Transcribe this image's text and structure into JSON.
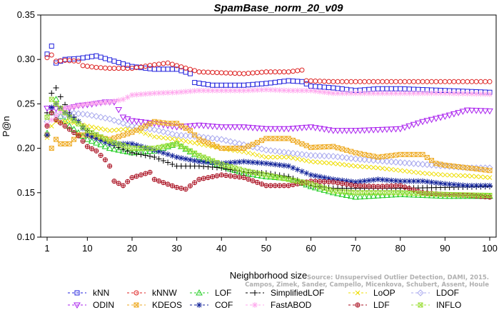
{
  "chart_data": {
    "type": "line",
    "title": "SpamBase_norm_20_v09",
    "xlabel": "Neighborhood size",
    "ylabel": "P@n",
    "xlim": [
      1,
      100
    ],
    "ylim": [
      0.1,
      0.35
    ],
    "xticks": [
      1,
      10,
      20,
      30,
      40,
      50,
      60,
      70,
      80,
      90,
      100
    ],
    "yticks": [
      "0.10",
      "0.15",
      "0.20",
      "0.25",
      "0.30",
      "0.35"
    ],
    "grid": false,
    "legend_position": "bottom",
    "credit": [
      "Source: Unsupervised Outlier Detection, DAMI, 2015.",
      "Campos, Zimek, Sander, Campello, Micenkova, Schubert, Assent, Houle"
    ],
    "series": [
      {
        "name": "kNN",
        "color": "#2222dd",
        "marker": "square",
        "points": [
          [
            1,
            0.306
          ],
          [
            2,
            0.315
          ],
          [
            3,
            0.296
          ],
          [
            5,
            0.3
          ],
          [
            8,
            0.301
          ],
          [
            12,
            0.304
          ],
          [
            16,
            0.298
          ],
          [
            20,
            0.292
          ],
          [
            25,
            0.289
          ],
          [
            30,
            0.289
          ],
          [
            33,
            0.284
          ],
          [
            34,
            0.274
          ],
          [
            38,
            0.271
          ],
          [
            45,
            0.271
          ],
          [
            50,
            0.273
          ],
          [
            55,
            0.276
          ],
          [
            58,
            0.275
          ],
          [
            60,
            0.27
          ],
          [
            65,
            0.268
          ],
          [
            70,
            0.265
          ],
          [
            75,
            0.267
          ],
          [
            80,
            0.267
          ],
          [
            85,
            0.266
          ],
          [
            90,
            0.265
          ],
          [
            95,
            0.264
          ],
          [
            100,
            0.263
          ]
        ]
      },
      {
        "name": "kNNW",
        "color": "#dd2222",
        "marker": "circle",
        "points": [
          [
            1,
            0.302
          ],
          [
            2,
            0.305
          ],
          [
            3,
            0.298
          ],
          [
            5,
            0.299
          ],
          [
            8,
            0.298
          ],
          [
            9,
            0.293
          ],
          [
            12,
            0.291
          ],
          [
            15,
            0.29
          ],
          [
            20,
            0.29
          ],
          [
            25,
            0.294
          ],
          [
            28,
            0.296
          ],
          [
            30,
            0.293
          ],
          [
            35,
            0.286
          ],
          [
            40,
            0.285
          ],
          [
            45,
            0.284
          ],
          [
            50,
            0.286
          ],
          [
            55,
            0.286
          ],
          [
            58,
            0.288
          ],
          [
            59,
            0.276
          ],
          [
            65,
            0.275
          ],
          [
            70,
            0.275
          ],
          [
            80,
            0.275
          ],
          [
            90,
            0.275
          ],
          [
            100,
            0.275
          ]
        ]
      },
      {
        "name": "LOF",
        "color": "#22cc22",
        "marker": "triangle",
        "points": [
          [
            1,
            0.217
          ],
          [
            2,
            0.24
          ],
          [
            3,
            0.255
          ],
          [
            4,
            0.236
          ],
          [
            6,
            0.225
          ],
          [
            10,
            0.21
          ],
          [
            15,
            0.2
          ],
          [
            20,
            0.195
          ],
          [
            25,
            0.197
          ],
          [
            30,
            0.205
          ],
          [
            35,
            0.19
          ],
          [
            40,
            0.18
          ],
          [
            45,
            0.172
          ],
          [
            50,
            0.168
          ],
          [
            55,
            0.166
          ],
          [
            60,
            0.157
          ],
          [
            65,
            0.15
          ],
          [
            70,
            0.145
          ],
          [
            80,
            0.148
          ],
          [
            90,
            0.146
          ],
          [
            100,
            0.146
          ]
        ]
      },
      {
        "name": "SimplifiedLOF",
        "color": "#000000",
        "marker": "plus",
        "points": [
          [
            1,
            0.24
          ],
          [
            2,
            0.262
          ],
          [
            3,
            0.268
          ],
          [
            4,
            0.258
          ],
          [
            6,
            0.24
          ],
          [
            10,
            0.22
          ],
          [
            15,
            0.205
          ],
          [
            20,
            0.195
          ],
          [
            25,
            0.19
          ],
          [
            30,
            0.18
          ],
          [
            35,
            0.18
          ],
          [
            40,
            0.178
          ],
          [
            45,
            0.173
          ],
          [
            50,
            0.172
          ],
          [
            55,
            0.168
          ],
          [
            60,
            0.158
          ],
          [
            65,
            0.155
          ],
          [
            70,
            0.155
          ],
          [
            80,
            0.155
          ],
          [
            90,
            0.156
          ],
          [
            100,
            0.157
          ]
        ]
      },
      {
        "name": "LoOP",
        "color": "#eedd00",
        "marker": "x",
        "points": [
          [
            1,
            0.212
          ],
          [
            2,
            0.225
          ],
          [
            3,
            0.23
          ],
          [
            6,
            0.23
          ],
          [
            10,
            0.225
          ],
          [
            15,
            0.22
          ],
          [
            20,
            0.222
          ],
          [
            25,
            0.213
          ],
          [
            30,
            0.21
          ],
          [
            35,
            0.205
          ],
          [
            40,
            0.2
          ],
          [
            45,
            0.196
          ],
          [
            50,
            0.19
          ],
          [
            55,
            0.19
          ],
          [
            60,
            0.185
          ],
          [
            65,
            0.183
          ],
          [
            70,
            0.18
          ],
          [
            75,
            0.178
          ],
          [
            80,
            0.175
          ],
          [
            85,
            0.172
          ],
          [
            90,
            0.17
          ],
          [
            95,
            0.169
          ],
          [
            100,
            0.167
          ]
        ]
      },
      {
        "name": "LDOF",
        "color": "#aaaaee",
        "marker": "diamond",
        "points": [
          [
            1,
            0.23
          ],
          [
            2,
            0.24
          ],
          [
            4,
            0.235
          ],
          [
            6,
            0.24
          ],
          [
            10,
            0.238
          ],
          [
            15,
            0.233
          ],
          [
            20,
            0.225
          ],
          [
            25,
            0.221
          ],
          [
            30,
            0.215
          ],
          [
            35,
            0.213
          ],
          [
            40,
            0.21
          ],
          [
            45,
            0.204
          ],
          [
            50,
            0.198
          ],
          [
            55,
            0.195
          ],
          [
            60,
            0.192
          ],
          [
            65,
            0.191
          ],
          [
            70,
            0.188
          ],
          [
            75,
            0.186
          ],
          [
            80,
            0.184
          ],
          [
            85,
            0.182
          ],
          [
            90,
            0.18
          ],
          [
            95,
            0.178
          ],
          [
            100,
            0.178
          ]
        ]
      },
      {
        "name": "ODIN",
        "color": "#aa22ee",
        "marker": "triangle-down",
        "points": [
          [
            1,
            0.245
          ],
          [
            5,
            0.244
          ],
          [
            8,
            0.248
          ],
          [
            10,
            0.249
          ],
          [
            14,
            0.252
          ],
          [
            16,
            0.252
          ],
          [
            18,
            0.235
          ],
          [
            20,
            0.231
          ],
          [
            25,
            0.228
          ],
          [
            30,
            0.224
          ],
          [
            35,
            0.226
          ],
          [
            40,
            0.224
          ],
          [
            45,
            0.224
          ],
          [
            50,
            0.222
          ],
          [
            55,
            0.222
          ],
          [
            60,
            0.224
          ],
          [
            65,
            0.22
          ],
          [
            70,
            0.22
          ],
          [
            75,
            0.221
          ],
          [
            80,
            0.222
          ],
          [
            85,
            0.23
          ],
          [
            90,
            0.236
          ],
          [
            95,
            0.243
          ],
          [
            100,
            0.242
          ]
        ]
      },
      {
        "name": "KDEOS",
        "color": "#eeaa22",
        "marker": "square-x",
        "points": [
          [
            1,
            0.215
          ],
          [
            2,
            0.2
          ],
          [
            3,
            0.21
          ],
          [
            4,
            0.205
          ],
          [
            6,
            0.205
          ],
          [
            8,
            0.215
          ],
          [
            10,
            0.215
          ],
          [
            15,
            0.21
          ],
          [
            20,
            0.218
          ],
          [
            25,
            0.23
          ],
          [
            28,
            0.228
          ],
          [
            30,
            0.228
          ],
          [
            33,
            0.22
          ],
          [
            35,
            0.21
          ],
          [
            40,
            0.2
          ],
          [
            45,
            0.2
          ],
          [
            50,
            0.211
          ],
          [
            55,
            0.211
          ],
          [
            60,
            0.201
          ],
          [
            65,
            0.202
          ],
          [
            70,
            0.195
          ],
          [
            75,
            0.19
          ],
          [
            80,
            0.193
          ],
          [
            85,
            0.193
          ],
          [
            88,
            0.183
          ],
          [
            90,
            0.181
          ],
          [
            95,
            0.178
          ],
          [
            100,
            0.175
          ]
        ]
      },
      {
        "name": "COF",
        "color": "#112299",
        "marker": "star",
        "points": [
          [
            1,
            0.215
          ],
          [
            2,
            0.246
          ],
          [
            3,
            0.25
          ],
          [
            5,
            0.24
          ],
          [
            8,
            0.23
          ],
          [
            10,
            0.215
          ],
          [
            15,
            0.205
          ],
          [
            20,
            0.205
          ],
          [
            25,
            0.198
          ],
          [
            30,
            0.19
          ],
          [
            35,
            0.185
          ],
          [
            40,
            0.183
          ],
          [
            45,
            0.185
          ],
          [
            50,
            0.183
          ],
          [
            55,
            0.18
          ],
          [
            60,
            0.17
          ],
          [
            65,
            0.165
          ],
          [
            70,
            0.162
          ],
          [
            75,
            0.165
          ],
          [
            80,
            0.163
          ],
          [
            85,
            0.163
          ],
          [
            90,
            0.16
          ],
          [
            95,
            0.158
          ],
          [
            100,
            0.158
          ]
        ]
      },
      {
        "name": "FastABOD",
        "color": "#ffaaee",
        "marker": "star",
        "points": [
          [
            1,
            0.227
          ],
          [
            3,
            0.237
          ],
          [
            5,
            0.245
          ],
          [
            8,
            0.248
          ],
          [
            10,
            0.25
          ],
          [
            15,
            0.252
          ],
          [
            18,
            0.255
          ],
          [
            20,
            0.26
          ],
          [
            25,
            0.262
          ],
          [
            30,
            0.263
          ],
          [
            35,
            0.265
          ],
          [
            40,
            0.265
          ],
          [
            45,
            0.265
          ],
          [
            50,
            0.266
          ],
          [
            55,
            0.265
          ],
          [
            60,
            0.265
          ],
          [
            65,
            0.262
          ],
          [
            70,
            0.262
          ],
          [
            80,
            0.262
          ],
          [
            90,
            0.262
          ],
          [
            100,
            0.261
          ]
        ]
      },
      {
        "name": "LDF",
        "color": "#aa1122",
        "marker": "circle-plus",
        "points": [
          [
            1,
            0.225
          ],
          [
            2,
            0.24
          ],
          [
            3,
            0.232
          ],
          [
            5,
            0.225
          ],
          [
            8,
            0.214
          ],
          [
            10,
            0.202
          ],
          [
            12,
            0.197
          ],
          [
            14,
            0.187
          ],
          [
            15,
            0.18
          ],
          [
            16,
            0.163
          ],
          [
            18,
            0.158
          ],
          [
            20,
            0.167
          ],
          [
            22,
            0.17
          ],
          [
            24,
            0.173
          ],
          [
            25,
            0.165
          ],
          [
            30,
            0.156
          ],
          [
            32,
            0.154
          ],
          [
            35,
            0.165
          ],
          [
            40,
            0.17
          ],
          [
            45,
            0.167
          ],
          [
            50,
            0.158
          ],
          [
            55,
            0.158
          ],
          [
            60,
            0.163
          ],
          [
            65,
            0.162
          ],
          [
            70,
            0.158
          ],
          [
            75,
            0.157
          ],
          [
            80,
            0.158
          ],
          [
            85,
            0.15
          ],
          [
            90,
            0.148
          ],
          [
            95,
            0.147
          ],
          [
            100,
            0.145
          ]
        ]
      },
      {
        "name": "INFLO",
        "color": "#99dd33",
        "marker": "square-x",
        "points": [
          [
            1,
            0.235
          ],
          [
            2,
            0.255
          ],
          [
            3,
            0.25
          ],
          [
            6,
            0.235
          ],
          [
            10,
            0.22
          ],
          [
            15,
            0.208
          ],
          [
            20,
            0.2
          ],
          [
            25,
            0.2
          ],
          [
            30,
            0.205
          ],
          [
            35,
            0.192
          ],
          [
            40,
            0.182
          ],
          [
            45,
            0.175
          ],
          [
            50,
            0.17
          ],
          [
            55,
            0.165
          ],
          [
            60,
            0.16
          ],
          [
            65,
            0.152
          ],
          [
            70,
            0.15
          ],
          [
            80,
            0.15
          ],
          [
            90,
            0.148
          ],
          [
            100,
            0.147
          ]
        ]
      }
    ],
    "legend_order": [
      "kNN",
      "kNNW",
      "LOF",
      "SimplifiedLOF",
      "LoOP",
      "LDOF",
      "ODIN",
      "KDEOS",
      "COF",
      "FastABOD",
      "LDF",
      "INFLO"
    ]
  }
}
